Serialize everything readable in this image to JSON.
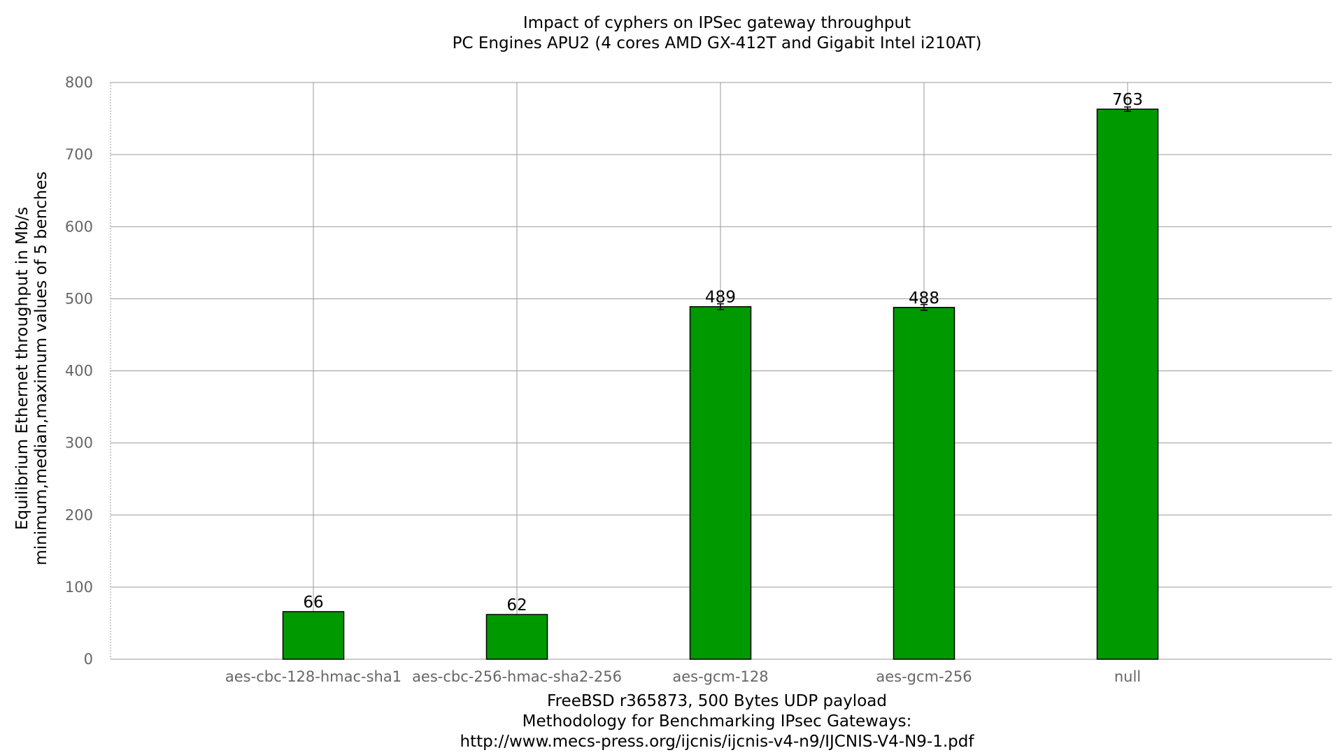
{
  "chart_data": {
    "type": "bar",
    "title": "Impact of cyphers on IPSec gateway throughput",
    "subtitle": "PC Engines APU2 (4 cores AMD GX-412T and Gigabit Intel i210AT)",
    "ylabel_line1": "Equilibrium Ethernet throughput in Mb/s",
    "ylabel_line2": "minimum,median,maximum values of 5 benches",
    "xlabel_line1": "FreeBSD r365873, 500 Bytes UDP payload",
    "xlabel_line2": "Methodology for Benchmarking IPsec Gateways:",
    "xlabel_line3": "http://www.mecs-press.org/ijcnis/ijcnis-v4-n9/IJCNIS-V4-N9-1.pdf",
    "categories": [
      "aes-cbc-128-hmac-sha1",
      "aes-cbc-256-hmac-sha2-256",
      "aes-gcm-128",
      "aes-gcm-256",
      "null"
    ],
    "values": [
      66,
      62,
      489,
      488,
      763
    ],
    "value_labels": [
      "66",
      "62",
      "489",
      "488",
      "763"
    ],
    "err_min": [
      66,
      62,
      485,
      484,
      760
    ],
    "err_max": [
      66,
      62,
      493,
      492,
      766
    ],
    "y_ticks": [
      0,
      100,
      200,
      300,
      400,
      500,
      600,
      700,
      800
    ],
    "ylim": [
      0,
      800
    ],
    "grid": true,
    "legend": "none",
    "bar_color": "#009900"
  }
}
